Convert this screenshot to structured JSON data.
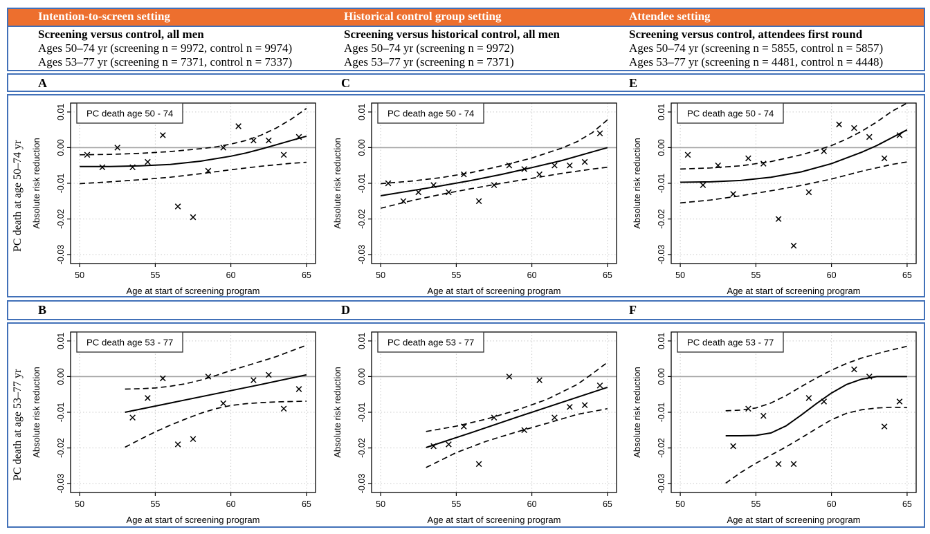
{
  "figure": {
    "accent_orange": "#ED6F2E",
    "border_blue": "#4170B8",
    "columns": [
      {
        "setting": "Intention-to-screen setting",
        "subtitle": "Screening versus control, all men",
        "line1": "Ages 50–74 yr (screening n = 9972, control n = 9974)",
        "line2": "Ages 53–77 yr (screening n = 7371, control n = 7337)"
      },
      {
        "setting": "Historical control group setting",
        "subtitle": "Screening versus historical control, all men",
        "line1": "Ages 50–74 yr (screening n = 9972)",
        "line2": "Ages 53–77 yr (screening n = 7371)"
      },
      {
        "setting": "Attendee setting",
        "subtitle": "Screening versus control, attendees first round",
        "line1": "Ages 50–74 yr (screening n = 5855, control n = 5857)",
        "line2": "Ages 53–77 yr (screening n = 4481, control n = 4448)"
      }
    ],
    "row_labels_top": [
      "A",
      "C",
      "E"
    ],
    "row_labels_bottom": [
      "B",
      "D",
      "F"
    ],
    "side_label_top": "PC death at age 50–74 yr",
    "side_label_bottom": "PC death at age 53–77 yr"
  },
  "chart_data": [
    {
      "id": "A",
      "type": "scatter",
      "legend": "PC death age 50 - 74",
      "xlabel": "Age at start of screening program",
      "ylabel": "Absolute risk reduction",
      "xlim": [
        49.4,
        65.6
      ],
      "ylim": [
        -0.0325,
        0.0125
      ],
      "xticks": [
        50,
        55,
        60,
        65
      ],
      "xtick_labels": [
        "50",
        "55",
        "60",
        "65"
      ],
      "yticks": [
        0.01,
        0.0,
        -0.01,
        -0.02,
        -0.03
      ],
      "ytick_labels": [
        "0.01",
        "0.00",
        "-0.01",
        "-0.02",
        "-0.03"
      ],
      "grid": true,
      "zero_line": true,
      "points": [
        [
          50.5,
          -0.002
        ],
        [
          51.5,
          -0.0055
        ],
        [
          52.5,
          0.0
        ],
        [
          53.5,
          -0.0055
        ],
        [
          54.5,
          -0.004
        ],
        [
          55.5,
          0.0035
        ],
        [
          56.5,
          -0.0165
        ],
        [
          57.5,
          -0.0195
        ],
        [
          58.5,
          -0.0065
        ],
        [
          59.5,
          0.0
        ],
        [
          60.5,
          0.006
        ],
        [
          61.5,
          0.002
        ],
        [
          62.5,
          0.002
        ],
        [
          63.5,
          -0.002
        ],
        [
          64.5,
          0.003
        ]
      ],
      "fit": [
        [
          50,
          -0.0053
        ],
        [
          52,
          -0.0053
        ],
        [
          54,
          -0.0051
        ],
        [
          56,
          -0.0047
        ],
        [
          58,
          -0.0038
        ],
        [
          60,
          -0.0024
        ],
        [
          61,
          -0.0015
        ],
        [
          62,
          -0.0004
        ],
        [
          63,
          0.0008
        ],
        [
          64,
          0.002
        ],
        [
          65,
          0.0032
        ]
      ],
      "upper": [
        [
          50,
          -0.002
        ],
        [
          52,
          -0.0019
        ],
        [
          54,
          -0.0016
        ],
        [
          56,
          -0.0011
        ],
        [
          58,
          -0.0003
        ],
        [
          59,
          0.0002
        ],
        [
          60,
          0.001
        ],
        [
          61,
          0.002
        ],
        [
          62,
          0.0035
        ],
        [
          63,
          0.0055
        ],
        [
          64,
          0.008
        ],
        [
          65,
          0.011
        ]
      ],
      "lower": [
        [
          50,
          -0.0101
        ],
        [
          52,
          -0.0096
        ],
        [
          54,
          -0.009
        ],
        [
          56,
          -0.0083
        ],
        [
          58,
          -0.0073
        ],
        [
          60,
          -0.0062
        ],
        [
          62,
          -0.0052
        ],
        [
          64,
          -0.0044
        ],
        [
          65,
          -0.0041
        ]
      ]
    },
    {
      "id": "C",
      "type": "scatter",
      "legend": "PC death age 50 - 74",
      "xlabel": "Age at start of screening program",
      "ylabel": "Absolute risk reduction",
      "xlim": [
        49.4,
        65.6
      ],
      "ylim": [
        -0.0325,
        0.0125
      ],
      "xticks": [
        50,
        55,
        60,
        65
      ],
      "xtick_labels": [
        "50",
        "55",
        "60",
        "65"
      ],
      "yticks": [
        0.01,
        0.0,
        -0.01,
        -0.02,
        -0.03
      ],
      "ytick_labels": [
        "0.01",
        "0.00",
        "-0.01",
        "-0.02",
        "-0.03"
      ],
      "grid": true,
      "zero_line": true,
      "points": [
        [
          50.5,
          -0.01
        ],
        [
          51.5,
          -0.015
        ],
        [
          52.5,
          -0.0125
        ],
        [
          53.5,
          -0.0105
        ],
        [
          54.5,
          -0.0125
        ],
        [
          55.5,
          -0.0075
        ],
        [
          56.5,
          -0.015
        ],
        [
          57.5,
          -0.0105
        ],
        [
          58.5,
          -0.005
        ],
        [
          59.5,
          -0.006
        ],
        [
          60.5,
          -0.0075
        ],
        [
          61.5,
          -0.005
        ],
        [
          62.5,
          -0.005
        ],
        [
          63.5,
          -0.004
        ],
        [
          64.5,
          0.004
        ]
      ],
      "fit": [
        [
          50,
          -0.0135
        ],
        [
          52,
          -0.0121
        ],
        [
          54,
          -0.0107
        ],
        [
          56,
          -0.0092
        ],
        [
          58,
          -0.0075
        ],
        [
          60,
          -0.0056
        ],
        [
          62,
          -0.0036
        ],
        [
          64,
          -0.0012
        ],
        [
          65,
          0.0
        ]
      ],
      "upper": [
        [
          50,
          -0.0101
        ],
        [
          52,
          -0.0094
        ],
        [
          54,
          -0.0084
        ],
        [
          56,
          -0.007
        ],
        [
          58,
          -0.0051
        ],
        [
          60,
          -0.0029
        ],
        [
          62,
          -0.0001
        ],
        [
          63,
          0.0017
        ],
        [
          64,
          0.0042
        ],
        [
          65,
          0.0078
        ]
      ],
      "lower": [
        [
          50,
          -0.017
        ],
        [
          52,
          -0.0149
        ],
        [
          54,
          -0.0131
        ],
        [
          56,
          -0.0115
        ],
        [
          58,
          -0.01
        ],
        [
          60,
          -0.0086
        ],
        [
          62,
          -0.0072
        ],
        [
          64,
          -0.006
        ],
        [
          65,
          -0.0055
        ]
      ]
    },
    {
      "id": "E",
      "type": "scatter",
      "legend": "PC death age 50 - 74",
      "xlabel": "Age at start of screening program",
      "ylabel": "Absolute risk reduction",
      "xlim": [
        49.4,
        65.6
      ],
      "ylim": [
        -0.0325,
        0.0125
      ],
      "xticks": [
        50,
        55,
        60,
        65
      ],
      "xtick_labels": [
        "50",
        "55",
        "60",
        "65"
      ],
      "yticks": [
        0.01,
        0.0,
        -0.01,
        -0.02,
        -0.03
      ],
      "ytick_labels": [
        "0.01",
        "0.00",
        "-0.01",
        "-0.02",
        "-0.03"
      ],
      "grid": true,
      "zero_line": true,
      "points": [
        [
          50.5,
          -0.002
        ],
        [
          51.5,
          -0.0105
        ],
        [
          52.5,
          -0.005
        ],
        [
          53.5,
          -0.013
        ],
        [
          54.5,
          -0.003
        ],
        [
          55.5,
          -0.0045
        ],
        [
          56.5,
          -0.02
        ],
        [
          57.5,
          -0.0275
        ],
        [
          58.5,
          -0.0125
        ],
        [
          59.5,
          -0.001
        ],
        [
          60.5,
          0.0065
        ],
        [
          61.5,
          0.0055
        ],
        [
          62.5,
          0.003
        ],
        [
          63.5,
          -0.003
        ],
        [
          64.5,
          0.0035
        ]
      ],
      "fit": [
        [
          50,
          -0.0097
        ],
        [
          52,
          -0.0096
        ],
        [
          54,
          -0.0092
        ],
        [
          56,
          -0.0083
        ],
        [
          58,
          -0.0068
        ],
        [
          60,
          -0.0045
        ],
        [
          62,
          -0.0013
        ],
        [
          63,
          0.0006
        ],
        [
          64,
          0.0028
        ],
        [
          65,
          0.005
        ]
      ],
      "upper": [
        [
          50,
          -0.006
        ],
        [
          52,
          -0.0057
        ],
        [
          54,
          -0.0051
        ],
        [
          56,
          -0.0039
        ],
        [
          58,
          -0.002
        ],
        [
          59,
          -0.0008
        ],
        [
          60,
          0.0006
        ],
        [
          61,
          0.0024
        ],
        [
          62,
          0.0046
        ],
        [
          63,
          0.0072
        ],
        [
          64,
          0.0102
        ],
        [
          65,
          0.0125
        ]
      ],
      "lower": [
        [
          50,
          -0.0155
        ],
        [
          52,
          -0.0147
        ],
        [
          54,
          -0.0135
        ],
        [
          56,
          -0.0121
        ],
        [
          58,
          -0.0106
        ],
        [
          60,
          -0.0088
        ],
        [
          62,
          -0.0066
        ],
        [
          64,
          -0.0047
        ],
        [
          65,
          -0.004
        ]
      ]
    },
    {
      "id": "B",
      "type": "scatter",
      "legend": "PC death age 53 - 77",
      "xlabel": "Age at start of screening program",
      "ylabel": "Absolute risk reduction",
      "xlim": [
        49.4,
        65.6
      ],
      "ylim": [
        -0.0325,
        0.0125
      ],
      "xticks": [
        50,
        55,
        60,
        65
      ],
      "xtick_labels": [
        "50",
        "55",
        "60",
        "65"
      ],
      "yticks": [
        0.01,
        0.0,
        -0.01,
        -0.02,
        -0.03
      ],
      "ytick_labels": [
        "0.01",
        "0.00",
        "-0.01",
        "-0.02",
        "-0.03"
      ],
      "grid": true,
      "zero_line": true,
      "points": [
        [
          53.5,
          -0.0115
        ],
        [
          54.5,
          -0.006
        ],
        [
          55.5,
          -0.0005
        ],
        [
          56.5,
          -0.019
        ],
        [
          57.5,
          -0.0175
        ],
        [
          58.5,
          0.0
        ],
        [
          59.5,
          -0.0075
        ],
        [
          61.5,
          -0.001
        ],
        [
          62.5,
          0.0005
        ],
        [
          63.5,
          -0.009
        ],
        [
          64.5,
          -0.0035
        ]
      ],
      "fit": [
        [
          53,
          -0.01
        ],
        [
          56,
          -0.0074
        ],
        [
          59,
          -0.0048
        ],
        [
          62,
          -0.0022
        ],
        [
          65,
          0.0005
        ]
      ],
      "upper": [
        [
          53,
          -0.0035
        ],
        [
          54,
          -0.0034
        ],
        [
          55,
          -0.0032
        ],
        [
          56,
          -0.0027
        ],
        [
          57,
          -0.002
        ],
        [
          58,
          -0.001
        ],
        [
          59,
          0.0003
        ],
        [
          60,
          0.0017
        ],
        [
          61,
          0.003
        ],
        [
          62,
          0.0043
        ],
        [
          63,
          0.0056
        ],
        [
          64,
          0.0072
        ],
        [
          65,
          0.0088
        ]
      ],
      "lower": [
        [
          53,
          -0.0198
        ],
        [
          54,
          -0.0176
        ],
        [
          55,
          -0.0155
        ],
        [
          56,
          -0.0136
        ],
        [
          57,
          -0.0119
        ],
        [
          58,
          -0.0103
        ],
        [
          59,
          -0.009
        ],
        [
          60,
          -0.0081
        ],
        [
          61,
          -0.0076
        ],
        [
          62,
          -0.0073
        ],
        [
          63,
          -0.0071
        ],
        [
          64,
          -0.007
        ],
        [
          65,
          -0.0069
        ]
      ]
    },
    {
      "id": "D",
      "type": "scatter",
      "legend": "PC death age 53 - 77",
      "xlabel": "Age at start of screening program",
      "ylabel": "Absolute risk reduction",
      "xlim": [
        49.4,
        65.6
      ],
      "ylim": [
        -0.0325,
        0.0125
      ],
      "xticks": [
        50,
        55,
        60,
        65
      ],
      "xtick_labels": [
        "50",
        "55",
        "60",
        "65"
      ],
      "yticks": [
        0.01,
        0.0,
        -0.01,
        -0.02,
        -0.03
      ],
      "ytick_labels": [
        "0.01",
        "0.00",
        "-0.01",
        "-0.02",
        "-0.03"
      ],
      "grid": true,
      "zero_line": true,
      "points": [
        [
          53.5,
          -0.0195
        ],
        [
          54.5,
          -0.019
        ],
        [
          55.5,
          -0.014
        ],
        [
          56.5,
          -0.0245
        ],
        [
          57.5,
          -0.0115
        ],
        [
          58.5,
          0.0
        ],
        [
          59.5,
          -0.015
        ],
        [
          60.5,
          -0.001
        ],
        [
          61.5,
          -0.0115
        ],
        [
          62.5,
          -0.0085
        ],
        [
          63.5,
          -0.008
        ],
        [
          64.5,
          -0.0025
        ]
      ],
      "fit": [
        [
          53,
          -0.0199
        ],
        [
          56,
          -0.0157
        ],
        [
          59,
          -0.0114
        ],
        [
          62,
          -0.0072
        ],
        [
          65,
          -0.003
        ]
      ],
      "upper": [
        [
          53,
          -0.0154
        ],
        [
          55,
          -0.0139
        ],
        [
          57,
          -0.0119
        ],
        [
          59,
          -0.0094
        ],
        [
          61,
          -0.0064
        ],
        [
          63,
          -0.0022
        ],
        [
          64,
          0.0008
        ],
        [
          65,
          0.004
        ]
      ],
      "lower": [
        [
          53,
          -0.0255
        ],
        [
          55,
          -0.0213
        ],
        [
          57,
          -0.0181
        ],
        [
          59,
          -0.0155
        ],
        [
          61,
          -0.0131
        ],
        [
          63,
          -0.0106
        ],
        [
          65,
          -0.009
        ]
      ]
    },
    {
      "id": "F",
      "type": "scatter",
      "legend": "PC death age 53 - 77",
      "xlabel": "Age at start of screening program",
      "ylabel": "Absolute risk reduction",
      "xlim": [
        49.4,
        65.6
      ],
      "ylim": [
        -0.0325,
        0.0125
      ],
      "xticks": [
        50,
        55,
        60,
        65
      ],
      "xtick_labels": [
        "50",
        "55",
        "60",
        "65"
      ],
      "yticks": [
        0.01,
        0.0,
        -0.01,
        -0.02,
        -0.03
      ],
      "ytick_labels": [
        "0.01",
        "0.00",
        "-0.01",
        "-0.02",
        "-0.03"
      ],
      "grid": true,
      "zero_line": true,
      "points": [
        [
          53.5,
          -0.0195
        ],
        [
          54.5,
          -0.009
        ],
        [
          55.5,
          -0.011
        ],
        [
          56.5,
          -0.0245
        ],
        [
          57.5,
          -0.0245
        ],
        [
          58.5,
          -0.006
        ],
        [
          59.5,
          -0.007
        ],
        [
          61.5,
          0.002
        ],
        [
          62.5,
          0.0
        ],
        [
          63.5,
          -0.014
        ],
        [
          64.5,
          -0.007
        ]
      ],
      "fit": [
        [
          53,
          -0.0166
        ],
        [
          54,
          -0.0166
        ],
        [
          55,
          -0.0165
        ],
        [
          56,
          -0.0158
        ],
        [
          57,
          -0.0138
        ],
        [
          58,
          -0.0108
        ],
        [
          59,
          -0.0076
        ],
        [
          60,
          -0.0046
        ],
        [
          61,
          -0.0022
        ],
        [
          62,
          -0.0007
        ],
        [
          63,
          0.0
        ],
        [
          64,
          0.0
        ],
        [
          65,
          0.0
        ]
      ],
      "upper": [
        [
          53,
          -0.0096
        ],
        [
          54,
          -0.0094
        ],
        [
          55,
          -0.0088
        ],
        [
          56,
          -0.0074
        ],
        [
          57,
          -0.0053
        ],
        [
          58,
          -0.0028
        ],
        [
          59,
          -0.0004
        ],
        [
          60,
          0.0018
        ],
        [
          61,
          0.0037
        ],
        [
          62,
          0.0052
        ],
        [
          63,
          0.0064
        ],
        [
          64,
          0.0075
        ],
        [
          65,
          0.0085
        ]
      ],
      "lower": [
        [
          53,
          -0.0299
        ],
        [
          54,
          -0.0269
        ],
        [
          55,
          -0.0243
        ],
        [
          56,
          -0.022
        ],
        [
          57,
          -0.0197
        ],
        [
          58,
          -0.0172
        ],
        [
          59,
          -0.0146
        ],
        [
          60,
          -0.0121
        ],
        [
          61,
          -0.0103
        ],
        [
          62,
          -0.0093
        ],
        [
          63,
          -0.0088
        ],
        [
          64,
          -0.0086
        ],
        [
          65,
          -0.0087
        ]
      ]
    }
  ]
}
